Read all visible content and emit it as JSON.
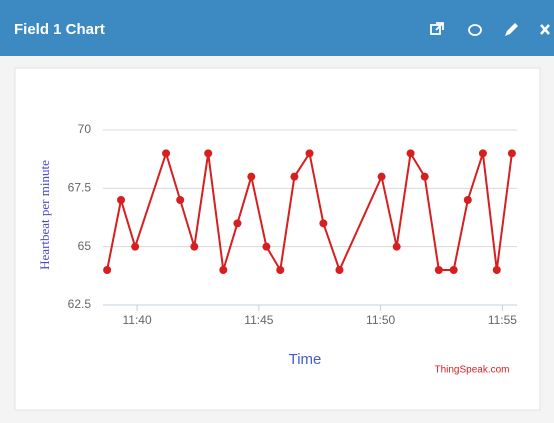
{
  "header": {
    "title": "Field 1 Chart"
  },
  "chart_data": {
    "type": "line",
    "x": [
      38.77,
      39.34,
      39.92,
      41.19,
      41.77,
      42.35,
      42.92,
      43.54,
      44.12,
      44.69,
      45.31,
      45.88,
      46.46,
      47.08,
      47.65,
      48.31,
      50.04,
      50.66,
      51.23,
      51.81,
      52.39,
      53.0,
      53.58,
      54.2,
      54.77,
      55.39
    ],
    "values": [
      64,
      67,
      65,
      69,
      67,
      65,
      69,
      64,
      66,
      68,
      65,
      64,
      68,
      69,
      66,
      64,
      68,
      65,
      69,
      68,
      64,
      64,
      67,
      69,
      64,
      69
    ],
    "color": "#d62020",
    "xlim": [
      38.6,
      55.6
    ],
    "xticks": [
      {
        "value": 40,
        "label": "11:40"
      },
      {
        "value": 45,
        "label": "11:45"
      },
      {
        "value": 50,
        "label": "11:50"
      },
      {
        "value": 55,
        "label": "11:55"
      }
    ],
    "ylim": [
      62.5,
      70
    ],
    "yticks": [
      62.5,
      65,
      67.5,
      70
    ],
    "grid": true,
    "y_label": "Heartbeat per minute",
    "x_label": "Time",
    "credit": "ThingSpeak.com"
  }
}
